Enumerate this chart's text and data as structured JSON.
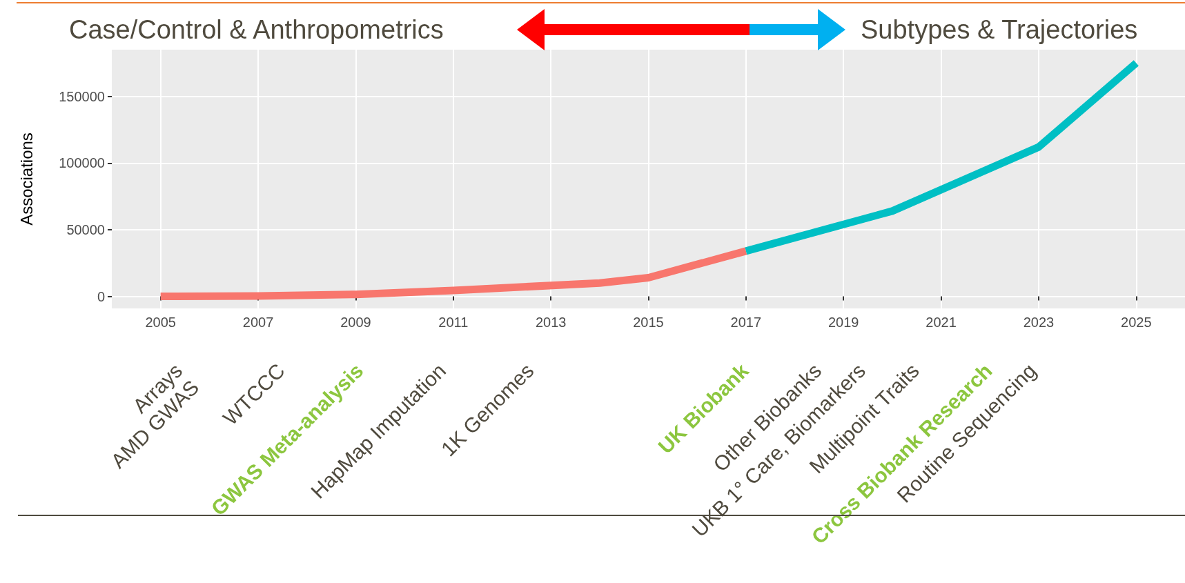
{
  "chart_data": {
    "type": "line",
    "ylabel": "Associations",
    "series": [
      {
        "color": "#f8766d",
        "x": [
          2005,
          2007,
          2009,
          2011,
          2014,
          2015,
          2017
        ],
        "values": [
          0,
          300,
          1500,
          4500,
          10000,
          14000,
          34000
        ]
      },
      {
        "color": "#00bfc4",
        "x": [
          2017,
          2020,
          2023,
          2025
        ],
        "values": [
          34000,
          64000,
          112000,
          175000
        ]
      }
    ],
    "xlim": [
      2004,
      2026
    ],
    "xticks": [
      2005,
      2007,
      2009,
      2011,
      2013,
      2015,
      2017,
      2019,
      2021,
      2023,
      2025
    ],
    "ylim": [
      -9000,
      185000
    ],
    "yticks": [
      0,
      50000,
      100000,
      150000
    ],
    "grid": true,
    "marker": "none",
    "line_style": "solid",
    "annotations": [
      "Case/Control & Anthropometrics",
      "Subtypes & Trajectories",
      "Arrays\nAMD GWAS",
      "WTCCC",
      "GWAS Meta-analysis",
      "HapMap Imputation",
      "1K Genomes",
      "UK Biobank",
      "Other Biobanks",
      "UKB 1° Care, Biomarkers",
      "Multipoint Traits",
      "Cross Biobank Research",
      "Routine Sequencing"
    ]
  }
}
